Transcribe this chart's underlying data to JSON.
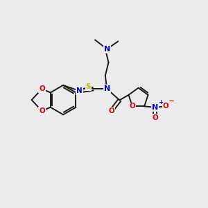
{
  "bg_color": "#ebebeb",
  "bond_color": "#1a1a1a",
  "atom_colors": {
    "O": "#dd0000",
    "N": "#0000cc",
    "S": "#bbbb00",
    "C": "#1a1a1a"
  },
  "font_size": 7.5,
  "line_width": 1.4,
  "scale": 1.0
}
